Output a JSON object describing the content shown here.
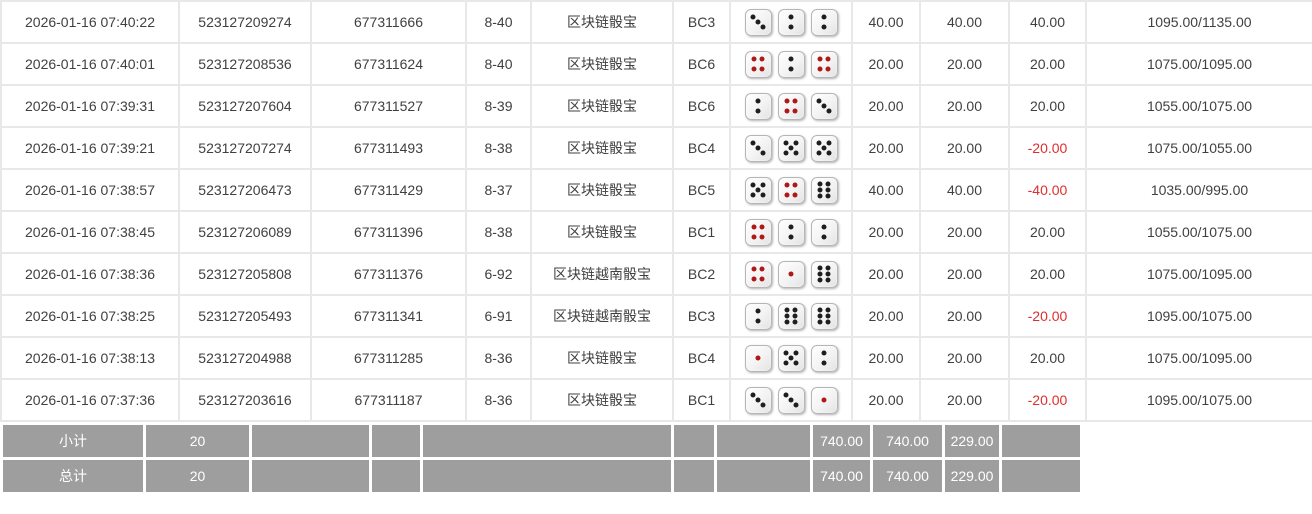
{
  "colors": {
    "amount_blue": "#3b6fd8",
    "negative_red": "#e02e2e",
    "footer_gray": "#9e9e9e",
    "row_border": "#e8e8e8",
    "body_text": "#404040"
  },
  "table": {
    "rows": [
      {
        "time": "2026-01-16 07:40:22",
        "order_no": "523127209274",
        "draw_no": "677311666",
        "period": "8-40",
        "game": "区块链骰宝",
        "table_code": "BC3",
        "dice": [
          3,
          2,
          2
        ],
        "bet": "40.00",
        "valid_bet": "40.00",
        "win_loss": "40.00",
        "balance": "1095.00/1135.00"
      },
      {
        "time": "2026-01-16 07:40:01",
        "order_no": "523127208536",
        "draw_no": "677311624",
        "period": "8-40",
        "game": "区块链骰宝",
        "table_code": "BC6",
        "dice": [
          4,
          2,
          4
        ],
        "bet": "20.00",
        "valid_bet": "20.00",
        "win_loss": "20.00",
        "balance": "1075.00/1095.00"
      },
      {
        "time": "2026-01-16 07:39:31",
        "order_no": "523127207604",
        "draw_no": "677311527",
        "period": "8-39",
        "game": "区块链骰宝",
        "table_code": "BC6",
        "dice": [
          2,
          4,
          3
        ],
        "bet": "20.00",
        "valid_bet": "20.00",
        "win_loss": "20.00",
        "balance": "1055.00/1075.00"
      },
      {
        "time": "2026-01-16 07:39:21",
        "order_no": "523127207274",
        "draw_no": "677311493",
        "period": "8-38",
        "game": "区块链骰宝",
        "table_code": "BC4",
        "dice": [
          3,
          5,
          5
        ],
        "bet": "20.00",
        "valid_bet": "20.00",
        "win_loss": "-20.00",
        "balance": "1075.00/1055.00"
      },
      {
        "time": "2026-01-16 07:38:57",
        "order_no": "523127206473",
        "draw_no": "677311429",
        "period": "8-37",
        "game": "区块链骰宝",
        "table_code": "BC5",
        "dice": [
          5,
          4,
          6
        ],
        "bet": "40.00",
        "valid_bet": "40.00",
        "win_loss": "-40.00",
        "balance": "1035.00/995.00"
      },
      {
        "time": "2026-01-16 07:38:45",
        "order_no": "523127206089",
        "draw_no": "677311396",
        "period": "8-38",
        "game": "区块链骰宝",
        "table_code": "BC1",
        "dice": [
          4,
          2,
          2
        ],
        "bet": "20.00",
        "valid_bet": "20.00",
        "win_loss": "20.00",
        "balance": "1055.00/1075.00"
      },
      {
        "time": "2026-01-16 07:38:36",
        "order_no": "523127205808",
        "draw_no": "677311376",
        "period": "6-92",
        "game": "区块链越南骰宝",
        "table_code": "BC2",
        "dice": [
          4,
          1,
          6
        ],
        "bet": "20.00",
        "valid_bet": "20.00",
        "win_loss": "20.00",
        "balance": "1075.00/1095.00"
      },
      {
        "time": "2026-01-16 07:38:25",
        "order_no": "523127205493",
        "draw_no": "677311341",
        "period": "6-91",
        "game": "区块链越南骰宝",
        "table_code": "BC3",
        "dice": [
          2,
          6,
          6
        ],
        "bet": "20.00",
        "valid_bet": "20.00",
        "win_loss": "-20.00",
        "balance": "1095.00/1075.00"
      },
      {
        "time": "2026-01-16 07:38:13",
        "order_no": "523127204988",
        "draw_no": "677311285",
        "period": "8-36",
        "game": "区块链骰宝",
        "table_code": "BC4",
        "dice": [
          1,
          5,
          2
        ],
        "bet": "20.00",
        "valid_bet": "20.00",
        "win_loss": "20.00",
        "balance": "1075.00/1095.00"
      },
      {
        "time": "2026-01-16 07:37:36",
        "order_no": "523127203616",
        "draw_no": "677311187",
        "period": "8-36",
        "game": "区块链骰宝",
        "table_code": "BC1",
        "dice": [
          3,
          3,
          1
        ],
        "bet": "20.00",
        "valid_bet": "20.00",
        "win_loss": "-20.00",
        "balance": "1095.00/1075.00"
      }
    ]
  },
  "footer": {
    "subtotal": {
      "label": "小计",
      "count": "20",
      "bet": "740.00",
      "valid_bet": "740.00",
      "win_loss": "229.00"
    },
    "total": {
      "label": "总计",
      "count": "20",
      "bet": "740.00",
      "valid_bet": "740.00",
      "win_loss": "229.00"
    }
  }
}
